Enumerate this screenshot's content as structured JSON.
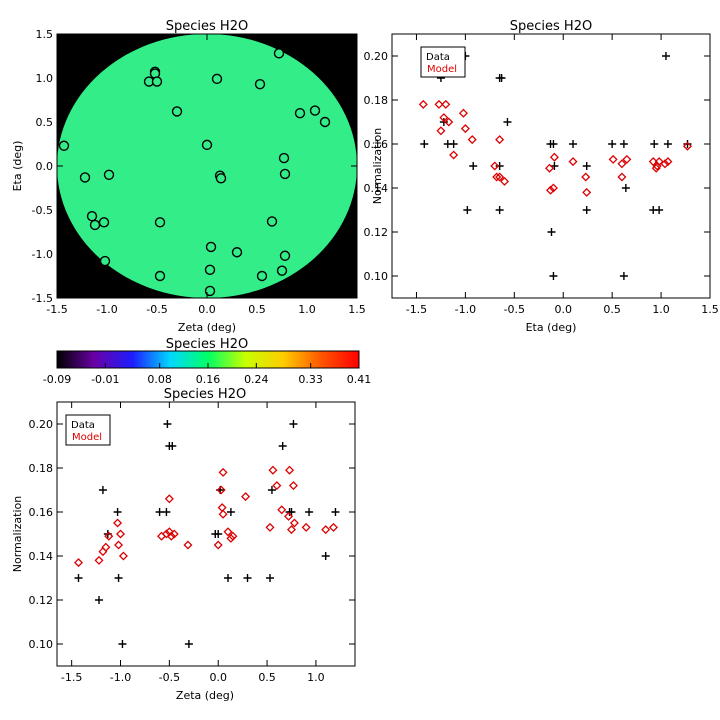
{
  "chart_data": [
    {
      "type": "heatmap",
      "title": "Species H2O",
      "xlabel": "Zeta (deg)",
      "ylabel": "Eta (deg)",
      "xlim": [
        -1.5,
        1.5
      ],
      "ylim": [
        -1.5,
        1.5
      ],
      "xticks": [
        "-1.5",
        "-1.0",
        "-0.5",
        "0.0",
        "0.5",
        "1.0",
        "1.5"
      ],
      "yticks": [
        "-1.5",
        "-1.0",
        "-0.5",
        "0.0",
        "0.5",
        "1.0",
        "1.5"
      ],
      "field_radius": 1.5,
      "field_color": "#33ee88",
      "background_color": "#000000",
      "points": [
        [
          -1.43,
          0.23
        ],
        [
          -1.22,
          -0.13
        ],
        [
          -1.15,
          -0.57
        ],
        [
          -1.12,
          -0.67
        ],
        [
          -1.03,
          -0.64
        ],
        [
          -1.02,
          -1.08
        ],
        [
          -0.98,
          -0.1
        ],
        [
          -0.52,
          1.07
        ],
        [
          -0.52,
          1.05
        ],
        [
          -0.58,
          0.96
        ],
        [
          -0.5,
          0.96
        ],
        [
          -0.47,
          -0.64
        ],
        [
          -0.47,
          -1.25
        ],
        [
          -0.3,
          0.62
        ],
        [
          0.0,
          0.24
        ],
        [
          0.04,
          -0.92
        ],
        [
          0.03,
          -1.18
        ],
        [
          0.03,
          -1.42
        ],
        [
          0.1,
          0.99
        ],
        [
          0.13,
          -0.11
        ],
        [
          0.14,
          -0.14
        ],
        [
          0.3,
          -0.98
        ],
        [
          0.53,
          0.93
        ],
        [
          0.55,
          -1.25
        ],
        [
          0.65,
          -0.63
        ],
        [
          0.72,
          1.28
        ],
        [
          0.75,
          -1.19
        ],
        [
          0.77,
          0.09
        ],
        [
          0.78,
          -0.09
        ],
        [
          0.78,
          -1.02
        ],
        [
          0.93,
          0.6
        ],
        [
          1.08,
          0.63
        ],
        [
          1.18,
          0.5
        ]
      ]
    },
    {
      "type": "scatter",
      "title": "Species H2O",
      "xlabel": "Eta (deg)",
      "ylabel": "Normalization",
      "xlim": [
        -1.75,
        1.5
      ],
      "ylim": [
        0.09,
        0.21
      ],
      "xticks": [
        "-1.5",
        "-1.0",
        "-0.5",
        "0.0",
        "0.5",
        "1.0",
        "1.5"
      ],
      "yticks": [
        "0.10",
        "0.12",
        "0.14",
        "0.16",
        "0.18",
        "0.20"
      ],
      "legend": {
        "placement": "top-left",
        "entries": [
          "Data",
          "Model"
        ]
      },
      "series": [
        {
          "name": "Data",
          "marker": "plus",
          "color": "#000000",
          "points": [
            [
              -1.42,
              0.16
            ],
            [
              -1.27,
              0.2
            ],
            [
              -1.25,
              0.19
            ],
            [
              -1.22,
              0.17
            ],
            [
              -1.18,
              0.16
            ],
            [
              -1.12,
              0.16
            ],
            [
              -1.0,
              0.2
            ],
            [
              -0.98,
              0.13
            ],
            [
              -0.92,
              0.15
            ],
            [
              -0.65,
              0.19
            ],
            [
              -0.63,
              0.19
            ],
            [
              -0.65,
              0.15
            ],
            [
              -0.65,
              0.13
            ],
            [
              -0.57,
              0.17
            ],
            [
              -0.13,
              0.16
            ],
            [
              -0.12,
              0.12
            ],
            [
              -0.1,
              0.1
            ],
            [
              -0.1,
              0.16
            ],
            [
              -0.09,
              0.15
            ],
            [
              0.1,
              0.16
            ],
            [
              0.24,
              0.15
            ],
            [
              0.24,
              0.13
            ],
            [
              0.5,
              0.16
            ],
            [
              0.62,
              0.16
            ],
            [
              0.62,
              0.1
            ],
            [
              0.64,
              0.14
            ],
            [
              0.92,
              0.13
            ],
            [
              0.93,
              0.16
            ],
            [
              0.98,
              0.13
            ],
            [
              1.05,
              0.2
            ],
            [
              1.07,
              0.16
            ],
            [
              1.27,
              0.16
            ]
          ]
        },
        {
          "name": "Model",
          "marker": "diamond",
          "color": "#dd0000",
          "points": [
            [
              -1.43,
              0.178
            ],
            [
              -1.27,
              0.178
            ],
            [
              -1.25,
              0.166
            ],
            [
              -1.22,
              0.172
            ],
            [
              -1.2,
              0.178
            ],
            [
              -1.17,
              0.17
            ],
            [
              -1.12,
              0.155
            ],
            [
              -1.02,
              0.174
            ],
            [
              -1.0,
              0.167
            ],
            [
              -0.93,
              0.162
            ],
            [
              -0.7,
              0.15
            ],
            [
              -0.68,
              0.145
            ],
            [
              -0.65,
              0.162
            ],
            [
              -0.65,
              0.145
            ],
            [
              -0.6,
              0.143
            ],
            [
              -0.14,
              0.149
            ],
            [
              -0.13,
              0.139
            ],
            [
              -0.1,
              0.14
            ],
            [
              -0.09,
              0.154
            ],
            [
              0.1,
              0.152
            ],
            [
              0.23,
              0.145
            ],
            [
              0.24,
              0.138
            ],
            [
              0.51,
              0.153
            ],
            [
              0.6,
              0.151
            ],
            [
              0.6,
              0.145
            ],
            [
              0.65,
              0.153
            ],
            [
              0.92,
              0.152
            ],
            [
              0.95,
              0.149
            ],
            [
              0.96,
              0.15
            ],
            [
              0.98,
              0.152
            ],
            [
              1.04,
              0.151
            ],
            [
              1.07,
              0.152
            ],
            [
              1.27,
              0.159
            ]
          ]
        }
      ]
    },
    {
      "type": "colorbar",
      "title": "Species H2O",
      "ticks": [
        "-0.09",
        "-0.01",
        "0.08",
        "0.16",
        "0.24",
        "0.33",
        "0.41"
      ],
      "range": [
        -0.09,
        0.41
      ],
      "colors": [
        "#000000",
        "#6a00a8",
        "#1e1eff",
        "#00d8ff",
        "#00ff66",
        "#c8ff00",
        "#ffcc00",
        "#ff5500",
        "#ff0000"
      ]
    },
    {
      "type": "scatter",
      "title": "Species H2O",
      "xlabel": "Zeta (deg)",
      "ylabel": "Normalization",
      "xlim": [
        -1.65,
        1.4
      ],
      "ylim": [
        0.09,
        0.21
      ],
      "xticks": [
        "-1.5",
        "-1.0",
        "-0.5",
        "0.0",
        "0.5",
        "1.0"
      ],
      "yticks": [
        "0.10",
        "0.12",
        "0.14",
        "0.16",
        "0.18",
        "0.20"
      ],
      "legend": {
        "placement": "top-left",
        "entries": [
          "Data",
          "Model"
        ]
      },
      "series": [
        {
          "name": "Data",
          "marker": "plus",
          "color": "#000000",
          "points": [
            [
              -1.43,
              0.13
            ],
            [
              -1.22,
              0.12
            ],
            [
              -1.18,
              0.17
            ],
            [
              -1.13,
              0.15
            ],
            [
              -1.03,
              0.16
            ],
            [
              -1.02,
              0.13
            ],
            [
              -0.98,
              0.1
            ],
            [
              -0.6,
              0.16
            ],
            [
              -0.52,
              0.2
            ],
            [
              -0.5,
              0.19
            ],
            [
              -0.47,
              0.19
            ],
            [
              -0.53,
              0.16
            ],
            [
              -0.3,
              0.1
            ],
            [
              -0.03,
              0.15
            ],
            [
              -0.0,
              0.15
            ],
            [
              0.02,
              0.17
            ],
            [
              0.1,
              0.13
            ],
            [
              0.13,
              0.16
            ],
            [
              0.3,
              0.13
            ],
            [
              0.53,
              0.13
            ],
            [
              0.55,
              0.17
            ],
            [
              0.66,
              0.19
            ],
            [
              0.73,
              0.16
            ],
            [
              0.75,
              0.16
            ],
            [
              0.77,
              0.2
            ],
            [
              0.93,
              0.16
            ],
            [
              1.1,
              0.14
            ],
            [
              1.2,
              0.16
            ]
          ]
        },
        {
          "name": "Model",
          "marker": "diamond",
          "color": "#dd0000",
          "points": [
            [
              -1.43,
              0.137
            ],
            [
              -1.22,
              0.138
            ],
            [
              -1.18,
              0.142
            ],
            [
              -1.15,
              0.144
            ],
            [
              -1.12,
              0.149
            ],
            [
              -1.03,
              0.155
            ],
            [
              -1.02,
              0.145
            ],
            [
              -1.0,
              0.15
            ],
            [
              -0.97,
              0.14
            ],
            [
              -0.58,
              0.149
            ],
            [
              -0.53,
              0.15
            ],
            [
              -0.5,
              0.151
            ],
            [
              -0.48,
              0.149
            ],
            [
              -0.5,
              0.166
            ],
            [
              -0.45,
              0.15
            ],
            [
              -0.31,
              0.145
            ],
            [
              0.0,
              0.145
            ],
            [
              0.03,
              0.17
            ],
            [
              0.04,
              0.162
            ],
            [
              0.05,
              0.159
            ],
            [
              0.05,
              0.178
            ],
            [
              0.1,
              0.151
            ],
            [
              0.13,
              0.148
            ],
            [
              0.15,
              0.149
            ],
            [
              0.28,
              0.167
            ],
            [
              0.53,
              0.153
            ],
            [
              0.56,
              0.179
            ],
            [
              0.6,
              0.172
            ],
            [
              0.65,
              0.161
            ],
            [
              0.72,
              0.158
            ],
            [
              0.73,
              0.179
            ],
            [
              0.75,
              0.152
            ],
            [
              0.77,
              0.172
            ],
            [
              0.78,
              0.155
            ],
            [
              0.9,
              0.153
            ],
            [
              1.1,
              0.152
            ],
            [
              1.18,
              0.153
            ]
          ]
        }
      ]
    }
  ]
}
